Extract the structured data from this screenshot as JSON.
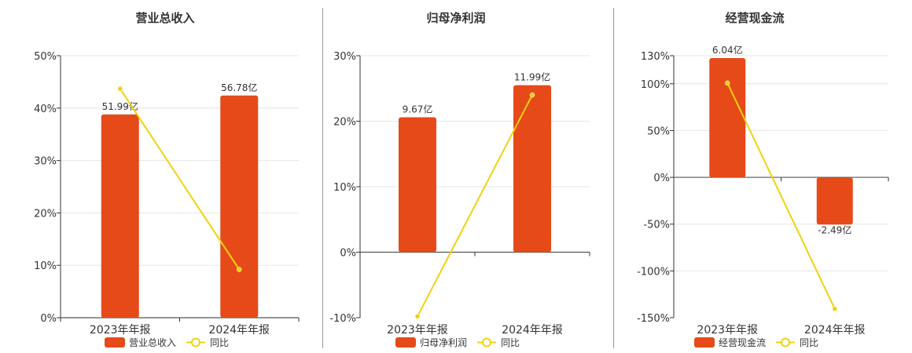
{
  "colors": {
    "bar": "#E64A19",
    "line": "#F2D20E",
    "axis": "#333333",
    "grid": "#E6E6E6",
    "text": "#333333"
  },
  "chart_data": [
    {
      "type": "bar",
      "title": "营业总收入",
      "categories": [
        "2023年年报",
        "2024年年报"
      ],
      "ylim": [
        0,
        50
      ],
      "yticks": [
        0,
        10,
        20,
        30,
        40,
        50
      ],
      "ytick_labels": [
        "0%",
        "10%",
        "20%",
        "30%",
        "40%",
        "50%"
      ],
      "grid": true,
      "legend": "bottom",
      "series": [
        {
          "name": "营业总收入",
          "kind": "bar",
          "values": [
            38.8,
            42.4
          ],
          "labels": [
            "51.99亿",
            "56.78亿"
          ]
        },
        {
          "name": "同比",
          "kind": "line",
          "values": [
            43.7,
            9.2
          ]
        }
      ]
    },
    {
      "type": "bar",
      "title": "归母净利润",
      "categories": [
        "2023年年报",
        "2024年年报"
      ],
      "ylim": [
        -10,
        30
      ],
      "yticks": [
        -10,
        0,
        10,
        20,
        30
      ],
      "ytick_labels": [
        "-10%",
        "0%",
        "10%",
        "20%",
        "30%"
      ],
      "grid": true,
      "legend": "bottom",
      "series": [
        {
          "name": "归母净利润",
          "kind": "bar",
          "values": [
            20.6,
            25.5
          ],
          "labels": [
            "9.67亿",
            "11.99亿"
          ]
        },
        {
          "name": "同比",
          "kind": "line",
          "values": [
            -9.8,
            24.0
          ]
        }
      ]
    },
    {
      "type": "bar",
      "title": "经营现金流",
      "categories": [
        "2023年年报",
        "2024年年报"
      ],
      "ylim": [
        -150,
        130
      ],
      "yticks": [
        -150,
        -100,
        -50,
        0,
        50,
        100,
        130
      ],
      "ytick_labels": [
        "-150%",
        "-100%",
        "-50%",
        "0%",
        "50%",
        "100%",
        "130%"
      ],
      "grid": true,
      "legend": "bottom",
      "series": [
        {
          "name": "经营现金流",
          "kind": "bar",
          "values": [
            127.5,
            -50.5
          ],
          "labels": [
            "6.04亿",
            "-2.49亿"
          ]
        },
        {
          "name": "同比",
          "kind": "line",
          "values": [
            100.8,
            -140.5
          ]
        }
      ]
    }
  ]
}
